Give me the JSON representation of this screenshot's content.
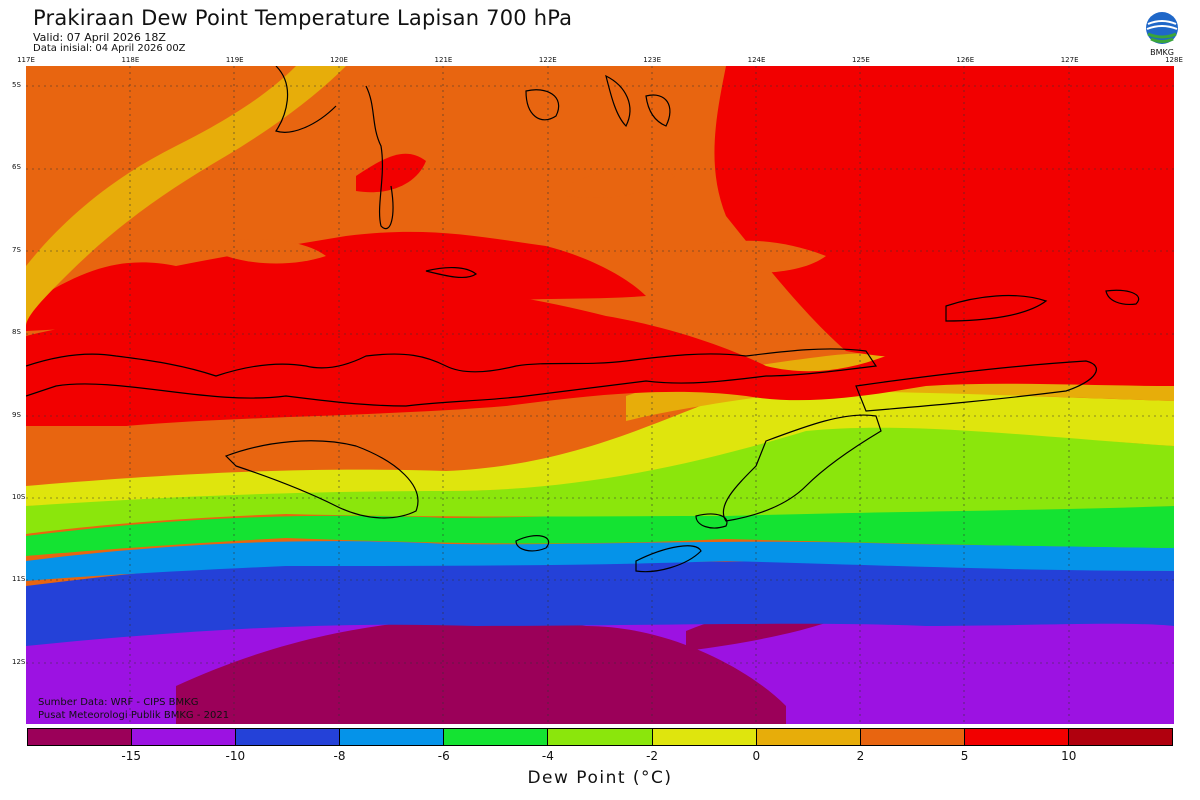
{
  "header": {
    "title": "Prakiraan Dew Point Temperature Lapisan 700 hPa",
    "valid": "Valid: 07 April 2026 18Z",
    "initial": "Data inisial: 04 April 2026 00Z"
  },
  "logo": {
    "text": "BMKG",
    "icon": "bmkg-logo-icon"
  },
  "map": {
    "lon_labels": [
      "117E",
      "118E",
      "119E",
      "120E",
      "121E",
      "122E",
      "123E",
      "124E",
      "125E",
      "126E",
      "127E",
      "128E"
    ],
    "lat_labels": [
      "5S",
      "6S",
      "7S",
      "8S",
      "9S",
      "10S",
      "11S",
      "12S"
    ],
    "region": "Nusa Tenggara / Flores / Timor",
    "field_colors": {
      "deep_red": "#b0000e",
      "red": "#f20000",
      "orange": "#e86510",
      "amber": "#e7ad0a",
      "yellow": "#dfe50d",
      "lime": "#8be60c",
      "green": "#14e332",
      "cyan": "#0593e9",
      "blue": "#2441d8",
      "violet": "#9c12e2",
      "magenta": "#9b0059"
    }
  },
  "credits": {
    "source": "Sumber Data: WRF - CIPS BMKG",
    "center": "Pusat Meteorologi Publik BMKG - 2021"
  },
  "colorbar": {
    "title": "Dew Point (°C)",
    "ticks": [
      "-15",
      "-10",
      "-8",
      "-6",
      "-4",
      "-2",
      "0",
      "2",
      "5",
      "10"
    ],
    "colors": [
      "#9b0059",
      "#9c12e2",
      "#2441d8",
      "#0593e9",
      "#14e332",
      "#8be60c",
      "#dfe50d",
      "#e7ad0a",
      "#e86510",
      "#f20000",
      "#b0000e"
    ]
  }
}
